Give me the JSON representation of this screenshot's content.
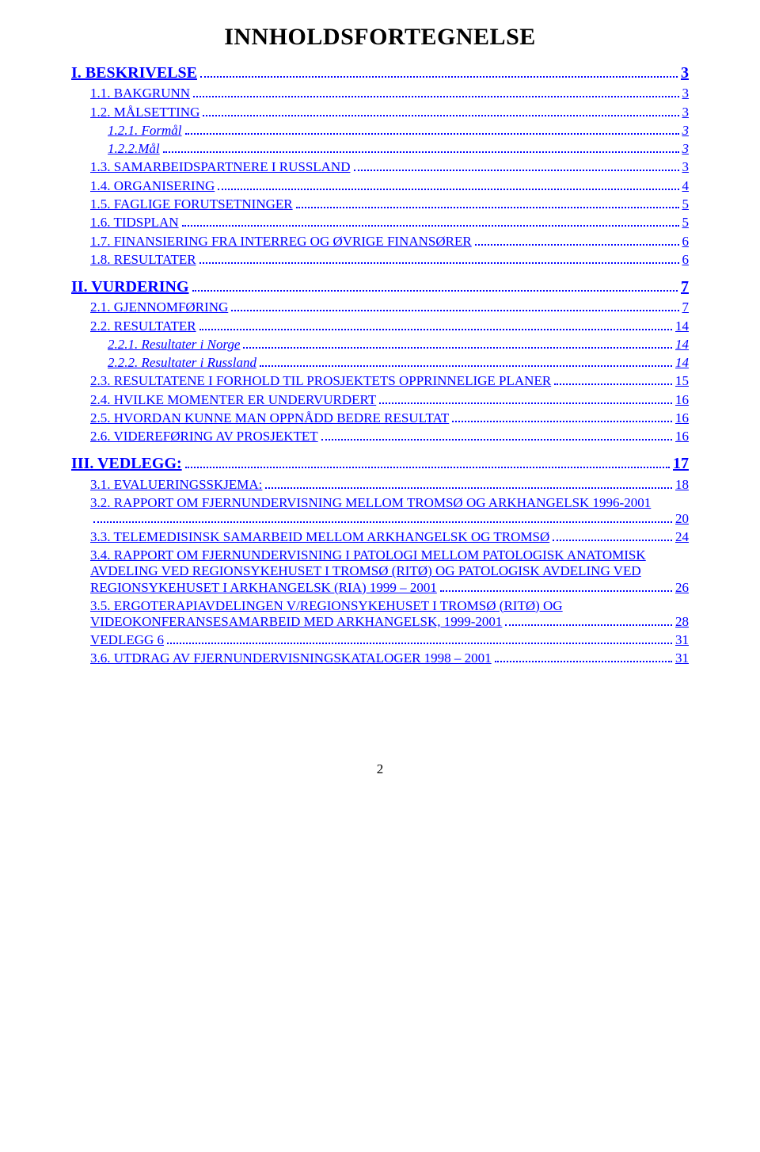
{
  "title": "INNHOLDSFORTEGNELSE",
  "toc": {
    "s1": {
      "label": "I. BESKRIVELSE",
      "page": "3"
    },
    "s1_1": {
      "label": "1.1. BAKGRUNN",
      "page": "3"
    },
    "s1_2": {
      "label": "1.2. MÅLSETTING",
      "page": "3"
    },
    "s1_2_1": {
      "label": "1.2.1. Formål",
      "page": "3"
    },
    "s1_2_2": {
      "label": "1.2.2.Mål",
      "page": "3"
    },
    "s1_3": {
      "label": "1.3. SAMARBEIDSPARTNERE I RUSSLAND",
      "page": "3"
    },
    "s1_4": {
      "label": "1.4. ORGANISERING",
      "page": "4"
    },
    "s1_5": {
      "label": "1.5. FAGLIGE FORUTSETNINGER",
      "page": "5"
    },
    "s1_6": {
      "label": "1.6. TIDSPLAN",
      "page": "5"
    },
    "s1_7": {
      "label": "1.7. FINANSIERING FRA INTERREG OG ØVRIGE FINANSØRER",
      "page": "6"
    },
    "s1_8": {
      "label": "1.8. RESULTATER",
      "page": "6"
    },
    "s2": {
      "label": "II. VURDERING",
      "page": "7"
    },
    "s2_1": {
      "label": "2.1. GJENNOMFØRING",
      "page": "7"
    },
    "s2_2": {
      "label": "2.2. RESULTATER",
      "page": "14"
    },
    "s2_2_1": {
      "label": "2.2.1. Resultater i Norge",
      "page": "14"
    },
    "s2_2_2": {
      "label": "2.2.2. Resultater i Russland",
      "page": "14"
    },
    "s2_3": {
      "label": "2.3. RESULTATENE I FORHOLD TIL PROSJEKTETS OPPRINNELIGE PLANER",
      "page": "15"
    },
    "s2_4": {
      "label": "2.4. HVILKE MOMENTER ER UNDERVURDERT",
      "page": "16"
    },
    "s2_5": {
      "label": "2.5. HVORDAN KUNNE MAN OPPNÅDD BEDRE RESULTAT",
      "page": "16"
    },
    "s2_6": {
      "label": "2.6. VIDEREFØRING AV PROSJEKTET",
      "page": "16"
    },
    "s3": {
      "label": "III. VEDLEGG:",
      "page": "17"
    },
    "s3_1": {
      "label": "3.1.  EVALUERINGSSKJEMA:",
      "page": "18"
    },
    "s3_2": {
      "line1": "3.2. RAPPORT OM FJERNUNDERVISNING MELLOM TROMSØ OG ARKHANGELSK 1996-2001",
      "last": "",
      "page": "20"
    },
    "s3_3": {
      "label": "3.3. TELEMEDISINSK SAMARBEID MELLOM ARKHANGELSK OG TROMSØ",
      "page": "24"
    },
    "s3_4": {
      "line1": "3.4. RAPPORT OM FJERNUNDERVISNING I PATOLOGI MELLOM PATOLOGISK ANATOMISK",
      "line2": "AVDELING VED REGIONSYKEHUSET I TROMSØ (RITØ) OG PATOLOGISK AVDELING VED",
      "last": "REGIONSYKEHUSET I ARKHANGELSK  (RIA) 1999 – 2001",
      "page": "26"
    },
    "s3_5": {
      "line1": "3.5. ERGOTERAPIAVDELINGEN V/REGIONSYKEHUSET I TROMSØ (RITØ) OG",
      "last": "VIDEOKONFERANSESAMARBEID MED ARKHANGELSK, 1999-2001",
      "page": "28"
    },
    "sV6": {
      "label": "VEDLEGG 6",
      "page": "31"
    },
    "s3_6": {
      "label": "3.6. UTDRAG AV FJERNUNDERVISNINGSKATALOGER 1998 – 2001",
      "page": "31"
    }
  },
  "pageNumber": "2",
  "colors": {
    "link": "#0000ff",
    "background": "#ffffff",
    "text": "#000000"
  }
}
